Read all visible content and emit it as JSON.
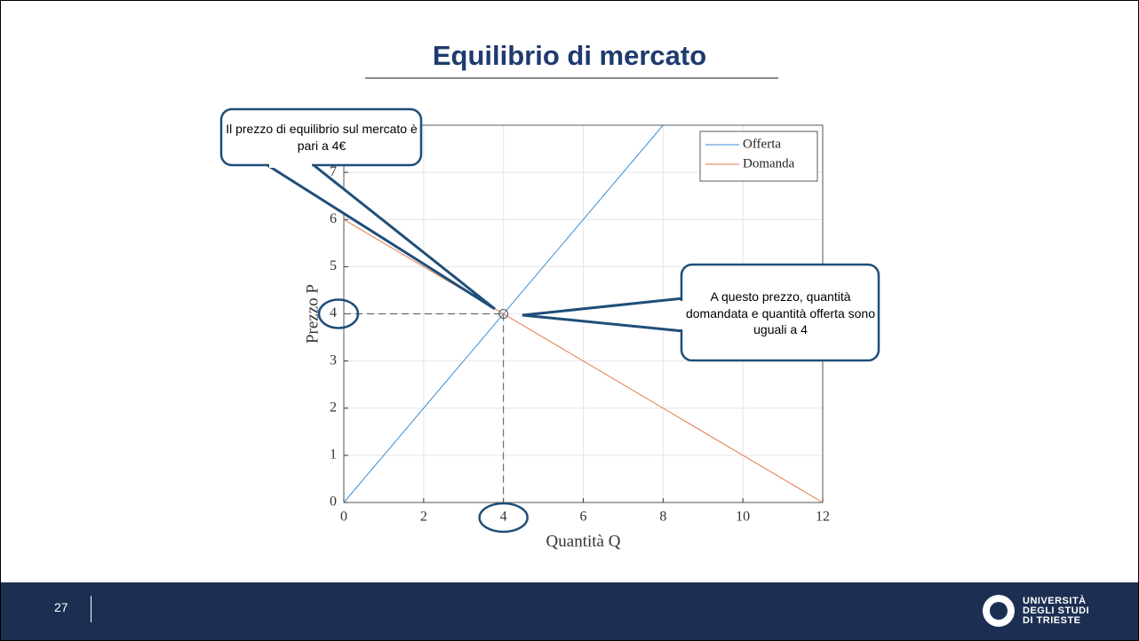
{
  "title": "Equilibrio di mercato",
  "chart_data": {
    "type": "line",
    "xlabel": "Quantità Q",
    "ylabel": "Prezzo P",
    "xlim": [
      0,
      12
    ],
    "ylim": [
      0,
      8
    ],
    "xticks": [
      0,
      2,
      4,
      6,
      8,
      10,
      12
    ],
    "yticks": [
      0,
      1,
      2,
      3,
      4,
      5,
      6,
      7
    ],
    "grid": true,
    "legend": "upper right",
    "series": [
      {
        "name": "Offerta",
        "color": "#3b8fd4",
        "x": [
          0,
          8
        ],
        "values": [
          0,
          8
        ]
      },
      {
        "name": "Domanda",
        "color": "#e2794a",
        "x": [
          0,
          12
        ],
        "values": [
          6,
          0
        ]
      }
    ],
    "equilibrium": {
      "x": 4,
      "y": 4
    }
  },
  "callouts": [
    "Il prezzo di equilibrio sul mercato è pari a 4€",
    "A questo prezzo, quantità domandata e quantità offerta sono uguali a 4"
  ],
  "footer": {
    "page": "27",
    "logo_lines": [
      "UNIVERSITÀ",
      "DEGLI STUDI",
      "DI TRIESTE"
    ]
  }
}
